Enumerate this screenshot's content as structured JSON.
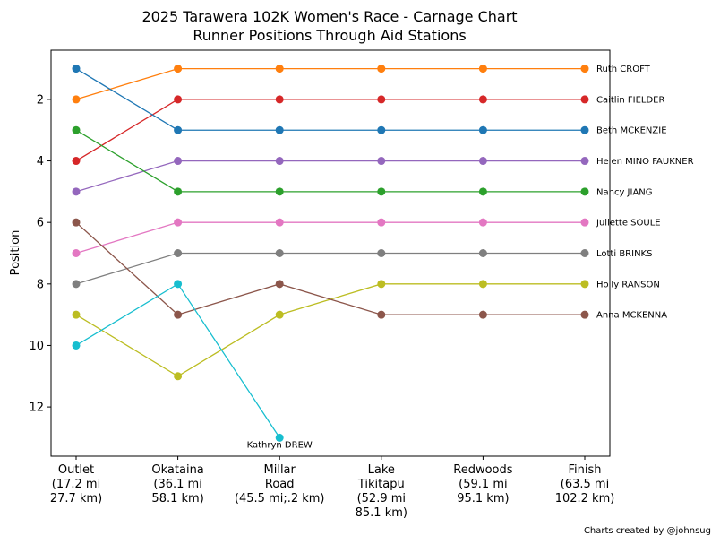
{
  "chart_data": {
    "type": "line",
    "title": "2025 Tarawera 102K Women's Race - Carnage Chart",
    "subtitle": "Runner Positions Through Aid Stations",
    "xlabel": "",
    "ylabel": "Position",
    "ylim": [
      13.6,
      0.4
    ],
    "y_inverted": true,
    "yticks": [
      2,
      4,
      6,
      8,
      10,
      12
    ],
    "categories": [
      [
        "Outlet",
        "(17.2 mi",
        "27.7 km)"
      ],
      [
        "Okataina",
        "(36.1 mi",
        "58.1 km)"
      ],
      [
        "Millar",
        "Road",
        "(45.5 mi;.2 km)"
      ],
      [
        "Lake",
        "Tikitapu",
        "(52.9 mi",
        "85.1 km)"
      ],
      [
        "Redwoods",
        "(59.1 mi",
        "95.1 km)"
      ],
      [
        "Finish",
        "(63.5 mi",
        "102.2 km)"
      ]
    ],
    "series": [
      {
        "name": "Ruth CROFT",
        "color": "#ff7f0e",
        "values": [
          2,
          1,
          1,
          1,
          1,
          1
        ],
        "label_position": "end"
      },
      {
        "name": "Caitlin FIELDER",
        "color": "#d62728",
        "values": [
          4,
          2,
          2,
          2,
          2,
          2
        ],
        "label_position": "end"
      },
      {
        "name": "Beth MCKENZIE",
        "color": "#1f77b4",
        "values": [
          1,
          3,
          3,
          3,
          3,
          3
        ],
        "label_position": "end"
      },
      {
        "name": "Helen MINO FAUKNER",
        "color": "#9467bd",
        "values": [
          5,
          4,
          4,
          4,
          4,
          4
        ],
        "label_position": "end"
      },
      {
        "name": "Nancy JIANG",
        "color": "#2ca02c",
        "values": [
          3,
          5,
          5,
          5,
          5,
          5
        ],
        "label_position": "end"
      },
      {
        "name": "Juliette SOULE",
        "color": "#e377c2",
        "values": [
          7,
          6,
          6,
          6,
          6,
          6
        ],
        "label_position": "end"
      },
      {
        "name": "Lotti BRINKS",
        "color": "#7f7f7f",
        "values": [
          8,
          7,
          7,
          7,
          7,
          7
        ],
        "label_position": "end"
      },
      {
        "name": "Holly RANSON",
        "color": "#bcbd22",
        "values": [
          9,
          11,
          9,
          8,
          8,
          8
        ],
        "label_position": "end"
      },
      {
        "name": "Anna MCKENNA",
        "color": "#8c564b",
        "values": [
          6,
          9,
          8,
          9,
          9,
          9
        ],
        "label_position": "end"
      },
      {
        "name": "Kathryn DREW",
        "color": "#17becf",
        "values": [
          10,
          8,
          13,
          null,
          null,
          null
        ],
        "label_position": "below-last"
      }
    ],
    "grid": false,
    "legend": "none",
    "credit": "Charts created by @johnsug"
  }
}
